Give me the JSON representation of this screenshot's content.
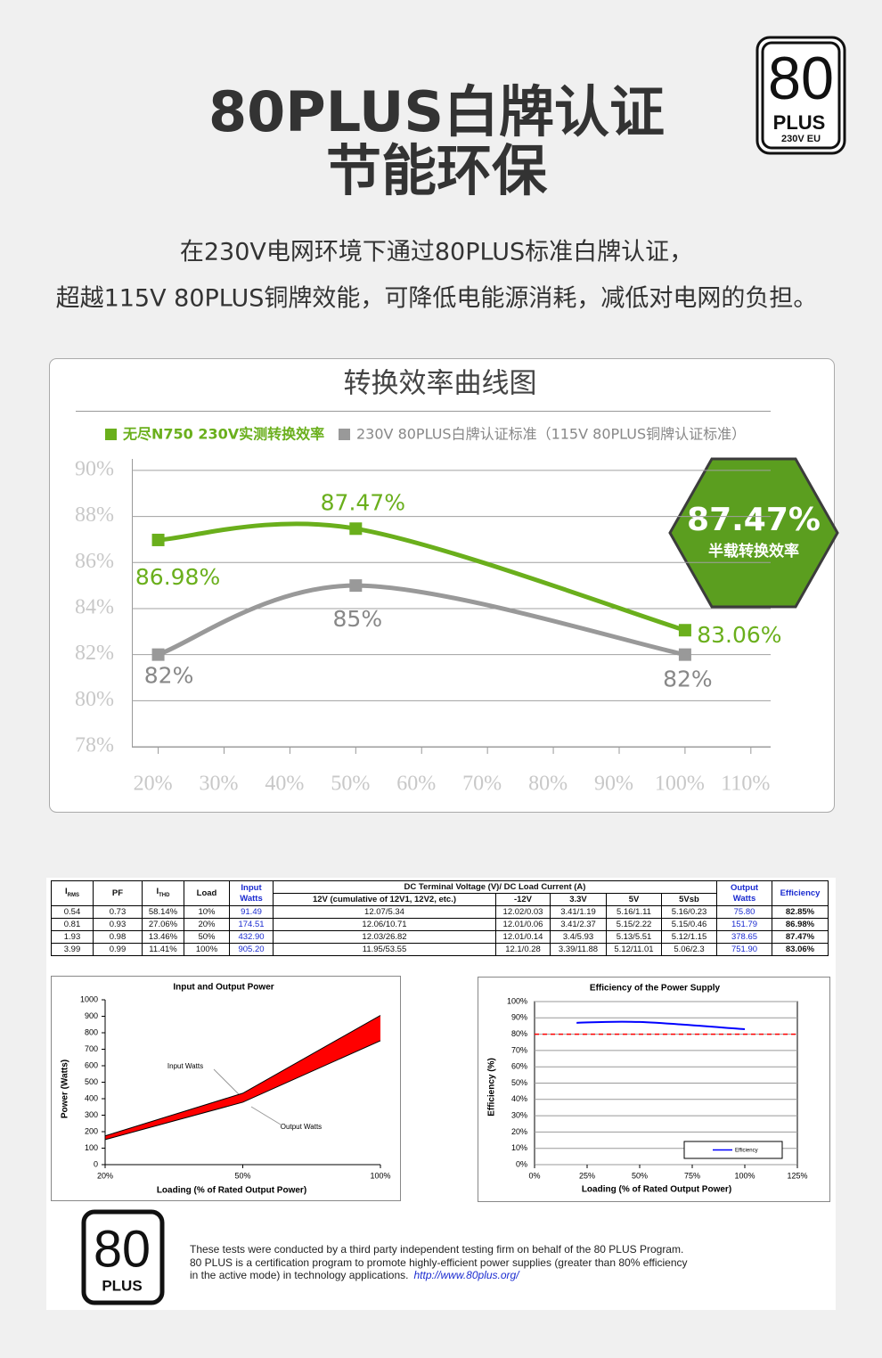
{
  "header": {
    "title_line1": "80PLUS白牌认证",
    "title_line2": "节能环保",
    "subtitle_line1": "在230V电网环境下通过80PLUS标准白牌认证，",
    "subtitle_line2": "超越115V 80PLUS铜牌效能，可降低电能源消耗，减低对电网的负担。",
    "badge": {
      "number": "80",
      "brand": "PLUS",
      "region": "230V EU"
    }
  },
  "chart_data": [
    {
      "type": "line",
      "title": "转换效率曲线图",
      "x": [
        20,
        50,
        100
      ],
      "xlim": [
        16,
        113
      ],
      "xticks": [
        {
          "value": 20,
          "label": "20%"
        },
        {
          "value": 30,
          "label": "30%"
        },
        {
          "value": 40,
          "label": "40%"
        },
        {
          "value": 50,
          "label": "50%"
        },
        {
          "value": 60,
          "label": "60%"
        },
        {
          "value": 70,
          "label": "70%"
        },
        {
          "value": 80,
          "label": "80%"
        },
        {
          "value": 90,
          "label": "90%"
        },
        {
          "value": 100,
          "label": "100%"
        },
        {
          "value": 110,
          "label": "110%"
        }
      ],
      "ylim": [
        78,
        90.5
      ],
      "yticks": [
        {
          "value": 90,
          "label": "90%"
        },
        {
          "value": 88,
          "label": "88%"
        },
        {
          "value": 86,
          "label": "86%"
        },
        {
          "value": 84,
          "label": "84%"
        },
        {
          "value": 82,
          "label": "82%"
        },
        {
          "value": 80,
          "label": "80%"
        },
        {
          "value": 78,
          "label": "78%"
        }
      ],
      "grid": true,
      "series": [
        {
          "name": "无尽N750 230V实测转换效率",
          "color": "#6aaf1c",
          "values": [
            86.98,
            87.47,
            83.06
          ],
          "value_labels": [
            "86.98%",
            "87.47%",
            "83.06%"
          ]
        },
        {
          "name": "230V 80PLUS白牌认证标准（115V 80PLUS铜牌认证标准）",
          "color": "#999999",
          "values": [
            82,
            85,
            82
          ],
          "value_labels": [
            "82%",
            "85%",
            "82%"
          ]
        }
      ],
      "annotation": {
        "value": 87.47,
        "label": "87.47%",
        "caption": "半载转换效率"
      }
    },
    {
      "type": "area",
      "title": "Input and Output Power",
      "categories": [
        "20%",
        "50%",
        "100%"
      ],
      "ylim": [
        0,
        1000
      ],
      "yticks": [
        0,
        100,
        200,
        300,
        400,
        500,
        600,
        700,
        800,
        900,
        1000
      ],
      "grid": false,
      "ylabel": "Power (Watts)",
      "xlabel": "Loading (% of Rated Output Power)",
      "fill": "#ff0000",
      "series": [
        {
          "name": "Input Watts",
          "color": "#000000",
          "values": [
            174.51,
            432.9,
            905.2
          ]
        },
        {
          "name": "Output Watts",
          "color": "#000000",
          "values": [
            151.79,
            378.65,
            751.9
          ]
        }
      ]
    },
    {
      "type": "line",
      "title": "Efficiency of the Power Supply",
      "x": [
        20,
        50,
        100
      ],
      "xlim": [
        0,
        125
      ],
      "xticks": [
        {
          "value": 0,
          "label": "0%"
        },
        {
          "value": 25,
          "label": "25%"
        },
        {
          "value": 50,
          "label": "50%"
        },
        {
          "value": 75,
          "label": "75%"
        },
        {
          "value": 100,
          "label": "100%"
        },
        {
          "value": 125,
          "label": "125%"
        }
      ],
      "ylim": [
        0,
        100
      ],
      "yticks": [
        {
          "value": 0,
          "label": "0%"
        },
        {
          "value": 10,
          "label": "10%"
        },
        {
          "value": 20,
          "label": "20%"
        },
        {
          "value": 30,
          "label": "30%"
        },
        {
          "value": 40,
          "label": "40%"
        },
        {
          "value": 50,
          "label": "50%"
        },
        {
          "value": 60,
          "label": "60%"
        },
        {
          "value": 70,
          "label": "70%"
        },
        {
          "value": 80,
          "label": "80%"
        },
        {
          "value": 90,
          "label": "90%"
        },
        {
          "value": 100,
          "label": "100%"
        }
      ],
      "grid": true,
      "ylabel": "Efficiency (%)",
      "xlabel": "Loading (% of Rated Output Power)",
      "threshold": {
        "value": 80,
        "color": "#ff0000"
      },
      "legend": "bottom-right",
      "series": [
        {
          "name": "Efficiency",
          "color": "#0000ff",
          "values": [
            86.98,
            87.47,
            83.06
          ]
        }
      ]
    }
  ],
  "table": {
    "headers": {
      "irms": {
        "main": "I",
        "sub": "RMS"
      },
      "pf": "PF",
      "ithd": {
        "main": "I",
        "sub": "THD"
      },
      "load": "Load",
      "input": "Input Watts",
      "dc_group": "DC Terminal Voltage (V)/ DC Load Current (A)",
      "rails": [
        "12V (cumulative of 12V1, 12V2, etc.)",
        "-12V",
        "3.3V",
        "5V",
        "5Vsb"
      ],
      "output": "Output Watts",
      "efficiency": "Efficiency"
    },
    "rows": [
      [
        "0.54",
        "0.73",
        "58.14%",
        "10%",
        "91.49",
        "12.07/5.34",
        "12.02/0.03",
        "3.41/1.19",
        "5.16/1.11",
        "5.16/0.23",
        "75.80",
        "82.85%"
      ],
      [
        "0.81",
        "0.93",
        "27.06%",
        "20%",
        "174.51",
        "12.06/10.71",
        "12.01/0.06",
        "3.41/2.37",
        "5.15/2.22",
        "5.15/0.46",
        "151.79",
        "86.98%"
      ],
      [
        "1.93",
        "0.98",
        "13.46%",
        "50%",
        "432.90",
        "12.03/26.82",
        "12.01/0.14",
        "3.4/5.93",
        "5.13/5.51",
        "5.12/1.15",
        "378.65",
        "87.47%"
      ],
      [
        "3.99",
        "0.99",
        "11.41%",
        "100%",
        "905.20",
        "11.95/53.55",
        "12.1/0.28",
        "3.39/11.88",
        "5.12/11.01",
        "5.06/2.3",
        "751.90",
        "83.06%"
      ]
    ]
  },
  "footer": {
    "logo": {
      "number": "80",
      "brand": "PLUS"
    },
    "lines": [
      "These tests were conducted by a third party independent testing firm on behalf of the 80 PLUS Program.",
      "80 PLUS is a certification program to promote highly-efficient power supplies (greater than 80% efficiency",
      "in the active mode) in technology applications."
    ],
    "url": "http://www.80plus.org/"
  }
}
